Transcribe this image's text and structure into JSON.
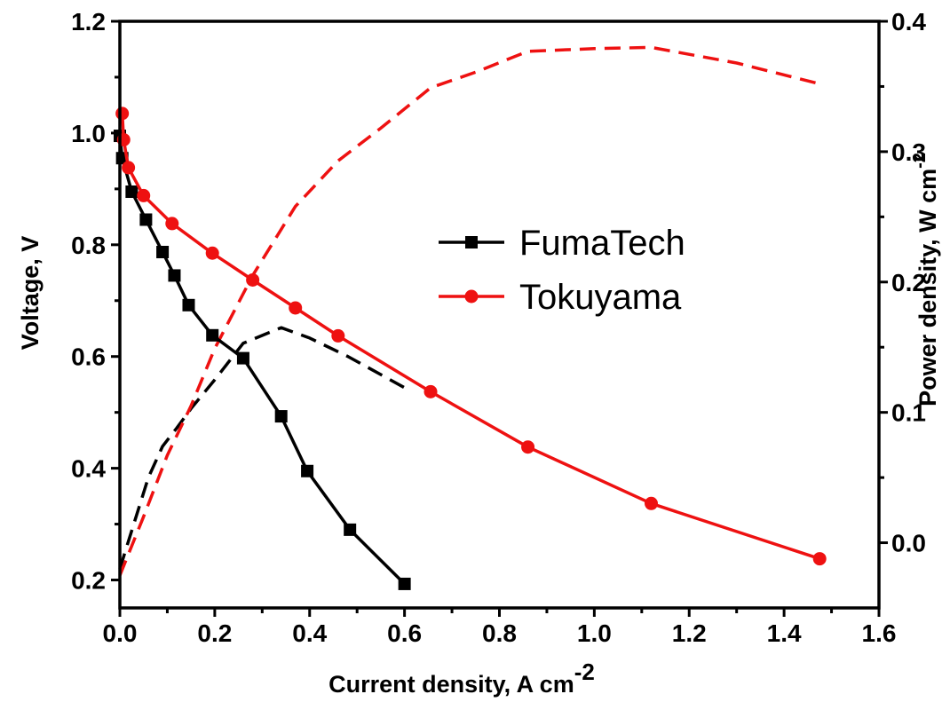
{
  "chart_data": {
    "type": "line",
    "xlabel": "Current density, A cm",
    "xlabel_sup": "-2",
    "ylabel": "Voltage, V",
    "y2label": "Power density, W cm",
    "y2label_sup": "-2",
    "xlim": [
      0.0,
      1.6
    ],
    "ylim": [
      0.15,
      1.2
    ],
    "y2lim": [
      -0.05,
      0.4
    ],
    "x_ticks": [
      "0.0",
      "0.2",
      "0.4",
      "0.6",
      "0.8",
      "1.0",
      "1.2",
      "1.4",
      "1.6"
    ],
    "y_ticks": [
      "0.2",
      "0.4",
      "0.6",
      "0.8",
      "1.0",
      "1.2"
    ],
    "y2_ticks": [
      "0.0",
      "0.1",
      "0.2",
      "0.3",
      "0.4"
    ],
    "grid": false,
    "legend_position": "center-right",
    "series": [
      {
        "name": "FumaTech",
        "axis": "left",
        "style": "solid",
        "marker": "square",
        "color": "#000000",
        "x": [
          0.0,
          0.005,
          0.025,
          0.055,
          0.09,
          0.115,
          0.145,
          0.195,
          0.26,
          0.34,
          0.395,
          0.485,
          0.6
        ],
        "y": [
          0.995,
          0.955,
          0.895,
          0.845,
          0.787,
          0.745,
          0.692,
          0.638,
          0.597,
          0.493,
          0.395,
          0.29,
          0.193
        ]
      },
      {
        "name": "Tokuyama",
        "axis": "left",
        "style": "solid",
        "marker": "circle",
        "color": "#ee1111",
        "x": [
          0.005,
          0.008,
          0.018,
          0.05,
          0.11,
          0.195,
          0.28,
          0.37,
          0.46,
          0.655,
          0.86,
          1.12,
          1.475
        ],
        "y": [
          1.035,
          0.988,
          0.938,
          0.888,
          0.838,
          0.785,
          0.737,
          0.687,
          0.637,
          0.537,
          0.438,
          0.337,
          0.238
        ]
      },
      {
        "name": "",
        "axis": "right",
        "style": "dashed",
        "color": "#000000",
        "x": [
          0.0,
          0.03,
          0.06,
          0.09,
          0.12,
          0.15,
          0.2,
          0.26,
          0.34,
          0.4,
          0.48,
          0.6
        ],
        "y": [
          -0.02,
          0.015,
          0.05,
          0.074,
          0.088,
          0.103,
          0.125,
          0.153,
          0.165,
          0.157,
          0.143,
          0.119
        ]
      },
      {
        "name": "",
        "axis": "right",
        "style": "dashed",
        "color": "#ee1111",
        "x": [
          0.0,
          0.05,
          0.1,
          0.15,
          0.2,
          0.28,
          0.37,
          0.46,
          0.55,
          0.655,
          0.75,
          0.86,
          1.0,
          1.12,
          1.3,
          1.475
        ],
        "y": [
          -0.025,
          0.02,
          0.067,
          0.105,
          0.149,
          0.205,
          0.258,
          0.293,
          0.318,
          0.349,
          0.361,
          0.377,
          0.379,
          0.38,
          0.368,
          0.352
        ]
      }
    ]
  }
}
